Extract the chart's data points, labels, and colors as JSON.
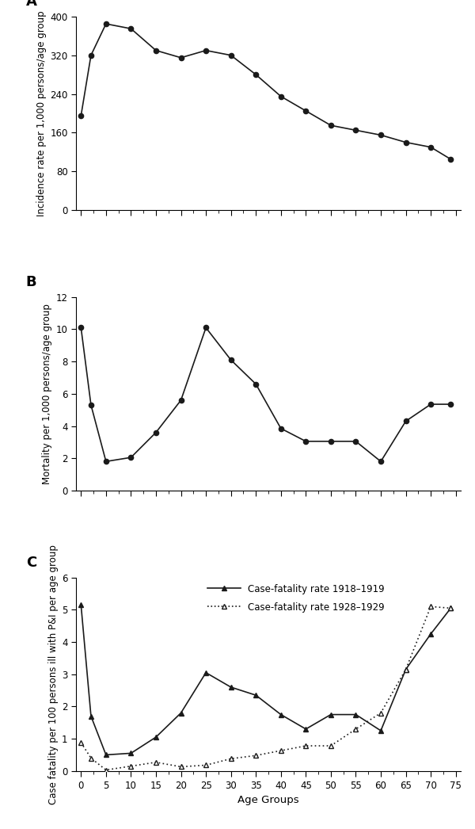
{
  "panel_A": {
    "title": "A",
    "ylabel": "Incidence rate per 1,000 persons/age group",
    "ylim": [
      0,
      400
    ],
    "yticks": [
      0,
      80,
      160,
      240,
      320,
      400
    ],
    "x": [
      0,
      2,
      5,
      10,
      15,
      20,
      25,
      30,
      35,
      40,
      45,
      50,
      55,
      60,
      65,
      70,
      74
    ],
    "y": [
      195,
      320,
      385,
      375,
      330,
      315,
      330,
      320,
      280,
      235,
      205,
      175,
      165,
      155,
      140,
      130,
      105
    ]
  },
  "panel_B": {
    "title": "B",
    "ylabel": "Mortality per 1,000 persons/age group",
    "ylim": [
      0,
      12
    ],
    "yticks": [
      0,
      2,
      4,
      6,
      8,
      10,
      12
    ],
    "x": [
      0,
      2,
      5,
      10,
      15,
      20,
      25,
      30,
      35,
      40,
      45,
      50,
      55,
      60,
      65,
      70,
      74
    ],
    "y": [
      10.1,
      5.3,
      1.8,
      2.05,
      3.6,
      5.6,
      10.1,
      8.1,
      6.6,
      3.85,
      3.05,
      3.05,
      3.05,
      1.8,
      4.3,
      5.35,
      5.35
    ]
  },
  "panel_C": {
    "title": "C",
    "ylabel": "Case fatality per 100 persons ill with P&I per age group",
    "xlabel": "Age Groups",
    "ylim": [
      0,
      6
    ],
    "yticks": [
      0,
      1,
      2,
      3,
      4,
      5,
      6
    ],
    "x1918": [
      0,
      2,
      5,
      10,
      15,
      20,
      25,
      30,
      35,
      40,
      45,
      50,
      55,
      60,
      65,
      70,
      74
    ],
    "y1918": [
      5.15,
      1.7,
      0.5,
      0.55,
      1.05,
      1.8,
      3.05,
      2.6,
      2.35,
      1.75,
      1.3,
      1.75,
      1.75,
      1.25,
      3.15,
      4.25,
      5.05
    ],
    "x1928": [
      0,
      2,
      5,
      10,
      15,
      20,
      25,
      30,
      35,
      40,
      45,
      50,
      55,
      60,
      65,
      70,
      74
    ],
    "y1928": [
      0.88,
      0.4,
      0.03,
      0.15,
      0.27,
      0.13,
      0.18,
      0.38,
      0.48,
      0.63,
      0.78,
      0.78,
      1.3,
      1.8,
      3.15,
      5.1,
      5.05
    ],
    "legend_1918": "Case-fatality rate 1918–1919",
    "legend_1928": "Case-fatality rate 1928–1929"
  },
  "xlim": [
    -1,
    76
  ],
  "xticks_major": [
    0,
    5,
    10,
    15,
    20,
    25,
    30,
    35,
    40,
    45,
    50,
    55,
    60,
    65,
    70,
    75
  ],
  "xticks_minor": [
    0,
    2.5,
    5,
    7.5,
    10,
    12.5,
    15,
    17.5,
    20,
    22.5,
    25,
    27.5,
    30,
    32.5,
    35,
    37.5,
    40,
    42.5,
    45,
    47.5,
    50,
    52.5,
    55,
    57.5,
    60,
    62.5,
    65,
    67.5,
    70,
    72.5,
    75
  ],
  "line_color": "#1a1a1a",
  "background_color": "#ffffff",
  "fontsize_label": 8.5,
  "fontsize_title": 13,
  "fontsize_tick": 8.5,
  "fontsize_legend": 8.5,
  "fontsize_xlabel": 9.5
}
